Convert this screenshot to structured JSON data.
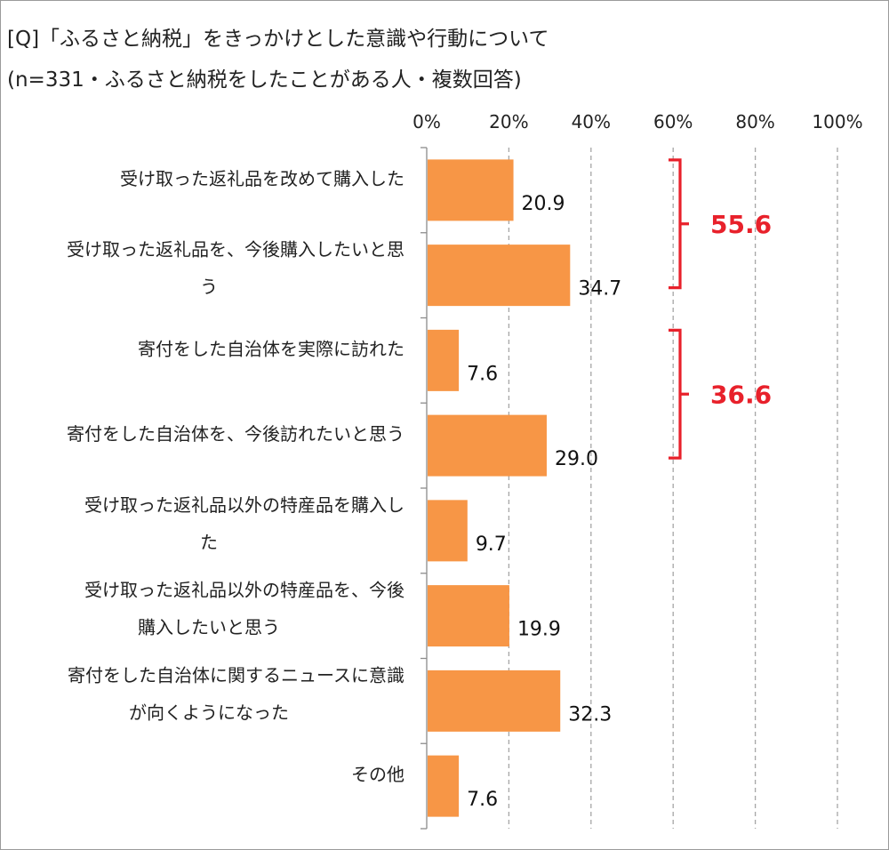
{
  "title": "[Q]「ふるさと納税」をきっかけとした意識や行動について",
  "subtitle": "(n=331・ふるさと納税をしたことがある人・複数回答)",
  "chart_data": {
    "type": "bar",
    "orientation": "horizontal",
    "title": "[Q]「ふるさと納税」をきっかけとした意識や行動について",
    "subtitle": "(n=331・ふるさと納税をしたことがある人・複数回答)",
    "xlim": [
      0,
      100
    ],
    "ticks": [
      "0%",
      "20%",
      "40%",
      "60%",
      "80%",
      "100%"
    ],
    "tick_values": [
      0,
      20,
      40,
      60,
      80,
      100
    ],
    "grid": true,
    "bar_color": "#F79646",
    "categories": [
      [
        "受け取った返礼品を改めて購入した"
      ],
      [
        "受け取った返礼品を、今後購入したいと思",
        "う"
      ],
      [
        "寄付をした自治体を実際に訪れた"
      ],
      [
        "寄付をした自治体を、今後訪れたいと思う"
      ],
      [
        "受け取った返礼品以外の特産品を購入し",
        "た"
      ],
      [
        "受け取った返礼品以外の特産品を、今後",
        "購入したいと思う"
      ],
      [
        "寄付をした自治体に関するニュースに意識",
        "が向くようになった"
      ],
      [
        "その他"
      ]
    ],
    "values": [
      20.9,
      34.7,
      7.6,
      29.0,
      9.7,
      19.9,
      32.3,
      7.6
    ],
    "value_labels": [
      "20.9",
      "34.7",
      "7.6",
      "29.0",
      "9.7",
      "19.9",
      "32.3",
      "7.6"
    ],
    "annotations": [
      {
        "text": "55.6",
        "bars": [
          0,
          1
        ],
        "color": "#E8212B"
      },
      {
        "text": "36.6",
        "bars": [
          2,
          3
        ],
        "color": "#E8212B"
      }
    ]
  }
}
